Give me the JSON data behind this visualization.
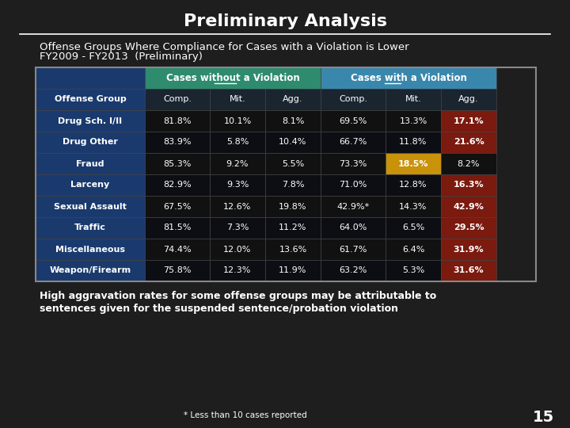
{
  "title": "Preliminary Analysis",
  "subtitle_line1": "Offense Groups Where Compliance for Cases with a Violation is Lower",
  "subtitle_line2": "FY2009 - FY2013  (Preliminary)",
  "bg_dark": "#1e1e1e",
  "header1": "Cases without a Violation",
  "header2": "Cases with a Violation",
  "col_headers": [
    "Offense Group",
    "Comp.",
    "Mit.",
    "Agg.",
    "Comp.",
    "Mit.",
    "Agg."
  ],
  "rows": [
    [
      "Drug Sch. I/II",
      "81.8%",
      "10.1%",
      "8.1%",
      "69.5%",
      "13.3%",
      "17.1%"
    ],
    [
      "Drug Other",
      "83.9%",
      "5.8%",
      "10.4%",
      "66.7%",
      "11.8%",
      "21.6%"
    ],
    [
      "Fraud",
      "85.3%",
      "9.2%",
      "5.5%",
      "73.3%",
      "18.5%",
      "8.2%"
    ],
    [
      "Larceny",
      "82.9%",
      "9.3%",
      "7.8%",
      "71.0%",
      "12.8%",
      "16.3%"
    ],
    [
      "Sexual Assault",
      "67.5%",
      "12.6%",
      "19.8%",
      "42.9%*",
      "14.3%",
      "42.9%"
    ],
    [
      "Traffic",
      "81.5%",
      "7.3%",
      "11.2%",
      "64.0%",
      "6.5%",
      "29.5%"
    ],
    [
      "Miscellaneous",
      "74.4%",
      "12.0%",
      "13.6%",
      "61.7%",
      "6.4%",
      "31.9%"
    ],
    [
      "Weapon/Firearm",
      "75.8%",
      "12.3%",
      "11.9%",
      "63.2%",
      "5.3%",
      "31.6%"
    ]
  ],
  "agg_highlight_rows": [
    0,
    1,
    3,
    4,
    5,
    6,
    7
  ],
  "mit_highlight_rows": [
    2
  ],
  "color_header_without": "#2e8b6e",
  "color_header_with": "#3a87ad",
  "color_agg_highlight": "#7b1a0f",
  "color_mit_highlight": "#c8920a",
  "color_offense_col": "#1a3a6e",
  "color_row_dark": "#111111",
  "color_row_light": "#1e1e2e",
  "color_data_col": "#111820",
  "color_text": "#ffffff",
  "footer_text_line1": "High aggravation rates for some offense groups may be attributable to",
  "footer_text_line2": "sentences given for the suspended sentence/probation violation",
  "footer_note": "* Less than 10 cases reported",
  "page_number": "15"
}
